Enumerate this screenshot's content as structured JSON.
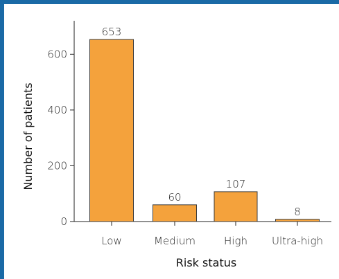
{
  "chart_data": {
    "type": "bar",
    "title": "",
    "xlabel": "Risk status",
    "ylabel": "Number of patients",
    "categories": [
      "Low",
      "Medium",
      "High",
      "Ultra-high"
    ],
    "values": [
      653,
      60,
      107,
      8
    ],
    "data_labels": [
      "653",
      "60",
      "107",
      "8"
    ],
    "ylim": [
      0,
      720
    ],
    "yticks": [
      0,
      200,
      400,
      600
    ],
    "ytick_labels": [
      "0",
      "200",
      "400",
      "600"
    ],
    "grid": false,
    "legend": "none",
    "colors": {
      "bar_fill": "#f4a23c",
      "bar_stroke": "#3a3a3a",
      "axis": "#222222",
      "frame_accent": "#1a6aa6"
    }
  }
}
